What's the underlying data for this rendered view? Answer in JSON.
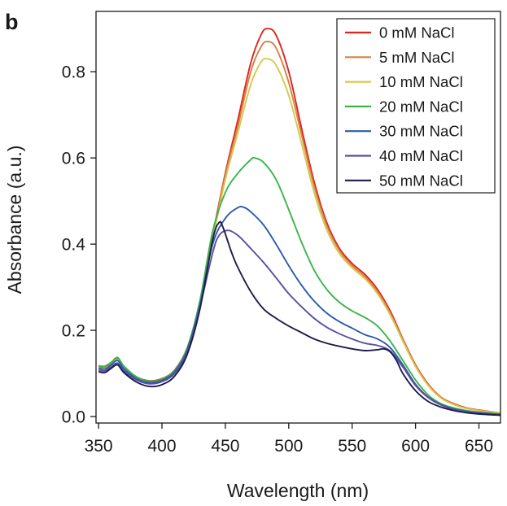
{
  "panel_label": "b",
  "chart_data": {
    "type": "line",
    "xlabel": "Wavelength (nm)",
    "ylabel": "Absorbance (a.u.)",
    "xlim": [
      348,
      667
    ],
    "ylim": [
      -0.015,
      0.94
    ],
    "xticks": [
      350,
      400,
      450,
      500,
      550,
      600,
      650
    ],
    "xtick_labels": [
      "350",
      "400",
      "450",
      "500",
      "550",
      "600",
      "650"
    ],
    "yticks": [
      0.0,
      0.2,
      0.4,
      0.6,
      0.8
    ],
    "ytick_labels": [
      "0.0",
      "0.2",
      "0.4",
      "0.6",
      "0.8"
    ],
    "grid": false,
    "legend_position": "top-right",
    "series": [
      {
        "name": "0 mM NaCl",
        "color": "#e2231a",
        "points": [
          [
            350,
            0.115
          ],
          [
            355,
            0.113
          ],
          [
            360,
            0.122
          ],
          [
            365,
            0.135
          ],
          [
            370,
            0.115
          ],
          [
            380,
            0.092
          ],
          [
            390,
            0.083
          ],
          [
            400,
            0.088
          ],
          [
            410,
            0.108
          ],
          [
            420,
            0.16
          ],
          [
            430,
            0.265
          ],
          [
            440,
            0.42
          ],
          [
            450,
            0.565
          ],
          [
            460,
            0.69
          ],
          [
            470,
            0.82
          ],
          [
            478,
            0.885
          ],
          [
            483,
            0.9
          ],
          [
            490,
            0.885
          ],
          [
            500,
            0.8
          ],
          [
            510,
            0.67
          ],
          [
            520,
            0.545
          ],
          [
            530,
            0.45
          ],
          [
            540,
            0.39
          ],
          [
            550,
            0.355
          ],
          [
            560,
            0.33
          ],
          [
            570,
            0.295
          ],
          [
            580,
            0.245
          ],
          [
            590,
            0.18
          ],
          [
            600,
            0.12
          ],
          [
            610,
            0.075
          ],
          [
            620,
            0.045
          ],
          [
            630,
            0.03
          ],
          [
            640,
            0.02
          ],
          [
            650,
            0.015
          ],
          [
            667,
            0.008
          ]
        ]
      },
      {
        "name": "5 mM NaCl",
        "color": "#d3834a",
        "points": [
          [
            350,
            0.114
          ],
          [
            355,
            0.112
          ],
          [
            360,
            0.121
          ],
          [
            365,
            0.133
          ],
          [
            370,
            0.114
          ],
          [
            380,
            0.091
          ],
          [
            390,
            0.082
          ],
          [
            400,
            0.087
          ],
          [
            410,
            0.107
          ],
          [
            420,
            0.158
          ],
          [
            430,
            0.262
          ],
          [
            440,
            0.415
          ],
          [
            450,
            0.56
          ],
          [
            460,
            0.675
          ],
          [
            470,
            0.8
          ],
          [
            478,
            0.857
          ],
          [
            483,
            0.87
          ],
          [
            490,
            0.855
          ],
          [
            500,
            0.775
          ],
          [
            510,
            0.655
          ],
          [
            520,
            0.535
          ],
          [
            530,
            0.443
          ],
          [
            540,
            0.385
          ],
          [
            550,
            0.35
          ],
          [
            560,
            0.325
          ],
          [
            570,
            0.29
          ],
          [
            580,
            0.24
          ],
          [
            590,
            0.178
          ],
          [
            600,
            0.118
          ],
          [
            610,
            0.073
          ],
          [
            620,
            0.044
          ],
          [
            630,
            0.029
          ],
          [
            640,
            0.019
          ],
          [
            650,
            0.014
          ],
          [
            667,
            0.008
          ]
        ]
      },
      {
        "name": "10 mM NaCl",
        "color": "#d6c94a",
        "points": [
          [
            350,
            0.113
          ],
          [
            355,
            0.111
          ],
          [
            360,
            0.12
          ],
          [
            365,
            0.132
          ],
          [
            370,
            0.113
          ],
          [
            380,
            0.09
          ],
          [
            390,
            0.081
          ],
          [
            400,
            0.086
          ],
          [
            410,
            0.106
          ],
          [
            420,
            0.156
          ],
          [
            430,
            0.26
          ],
          [
            440,
            0.41
          ],
          [
            450,
            0.55
          ],
          [
            460,
            0.66
          ],
          [
            470,
            0.77
          ],
          [
            478,
            0.822
          ],
          [
            483,
            0.83
          ],
          [
            490,
            0.815
          ],
          [
            500,
            0.745
          ],
          [
            510,
            0.635
          ],
          [
            520,
            0.52
          ],
          [
            530,
            0.433
          ],
          [
            540,
            0.378
          ],
          [
            550,
            0.345
          ],
          [
            560,
            0.32
          ],
          [
            570,
            0.285
          ],
          [
            580,
            0.236
          ],
          [
            590,
            0.175
          ],
          [
            600,
            0.116
          ],
          [
            610,
            0.072
          ],
          [
            620,
            0.043
          ],
          [
            630,
            0.028
          ],
          [
            640,
            0.019
          ],
          [
            650,
            0.014
          ],
          [
            667,
            0.008
          ]
        ]
      },
      {
        "name": "20 mM NaCl",
        "color": "#3bb54a",
        "points": [
          [
            350,
            0.118
          ],
          [
            355,
            0.117
          ],
          [
            360,
            0.126
          ],
          [
            365,
            0.137
          ],
          [
            370,
            0.117
          ],
          [
            380,
            0.092
          ],
          [
            390,
            0.082
          ],
          [
            400,
            0.087
          ],
          [
            410,
            0.107
          ],
          [
            420,
            0.16
          ],
          [
            430,
            0.27
          ],
          [
            440,
            0.43
          ],
          [
            450,
            0.52
          ],
          [
            460,
            0.565
          ],
          [
            470,
            0.596
          ],
          [
            473,
            0.6
          ],
          [
            480,
            0.59
          ],
          [
            490,
            0.55
          ],
          [
            500,
            0.48
          ],
          [
            510,
            0.405
          ],
          [
            520,
            0.34
          ],
          [
            530,
            0.295
          ],
          [
            540,
            0.265
          ],
          [
            550,
            0.245
          ],
          [
            560,
            0.23
          ],
          [
            570,
            0.21
          ],
          [
            580,
            0.175
          ],
          [
            590,
            0.13
          ],
          [
            600,
            0.085
          ],
          [
            610,
            0.05
          ],
          [
            620,
            0.03
          ],
          [
            630,
            0.02
          ],
          [
            640,
            0.014
          ],
          [
            650,
            0.01
          ],
          [
            667,
            0.006
          ]
        ]
      },
      {
        "name": "30 mM NaCl",
        "color": "#2a5cab",
        "points": [
          [
            350,
            0.112
          ],
          [
            355,
            0.11
          ],
          [
            360,
            0.12
          ],
          [
            365,
            0.13
          ],
          [
            370,
            0.111
          ],
          [
            380,
            0.088
          ],
          [
            390,
            0.079
          ],
          [
            400,
            0.084
          ],
          [
            410,
            0.104
          ],
          [
            420,
            0.155
          ],
          [
            430,
            0.26
          ],
          [
            440,
            0.4
          ],
          [
            450,
            0.46
          ],
          [
            460,
            0.485
          ],
          [
            465,
            0.485
          ],
          [
            470,
            0.475
          ],
          [
            480,
            0.445
          ],
          [
            490,
            0.4
          ],
          [
            500,
            0.35
          ],
          [
            510,
            0.305
          ],
          [
            520,
            0.268
          ],
          [
            530,
            0.24
          ],
          [
            540,
            0.22
          ],
          [
            550,
            0.205
          ],
          [
            560,
            0.19
          ],
          [
            570,
            0.18
          ],
          [
            580,
            0.16
          ],
          [
            590,
            0.12
          ],
          [
            600,
            0.075
          ],
          [
            610,
            0.045
          ],
          [
            620,
            0.028
          ],
          [
            630,
            0.018
          ],
          [
            640,
            0.012
          ],
          [
            650,
            0.009
          ],
          [
            667,
            0.005
          ]
        ]
      },
      {
        "name": "40 mM NaCl",
        "color": "#5a4fa0",
        "points": [
          [
            350,
            0.108
          ],
          [
            355,
            0.106
          ],
          [
            360,
            0.115
          ],
          [
            365,
            0.124
          ],
          [
            370,
            0.106
          ],
          [
            380,
            0.085
          ],
          [
            390,
            0.076
          ],
          [
            400,
            0.081
          ],
          [
            410,
            0.1
          ],
          [
            420,
            0.15
          ],
          [
            430,
            0.255
          ],
          [
            440,
            0.38
          ],
          [
            445,
            0.42
          ],
          [
            452,
            0.432
          ],
          [
            460,
            0.42
          ],
          [
            470,
            0.39
          ],
          [
            480,
            0.358
          ],
          [
            490,
            0.322
          ],
          [
            500,
            0.285
          ],
          [
            510,
            0.255
          ],
          [
            520,
            0.228
          ],
          [
            530,
            0.207
          ],
          [
            540,
            0.192
          ],
          [
            550,
            0.18
          ],
          [
            560,
            0.17
          ],
          [
            570,
            0.165
          ],
          [
            580,
            0.152
          ],
          [
            590,
            0.115
          ],
          [
            600,
            0.072
          ],
          [
            610,
            0.044
          ],
          [
            620,
            0.027
          ],
          [
            630,
            0.017
          ],
          [
            640,
            0.011
          ],
          [
            650,
            0.008
          ],
          [
            667,
            0.004
          ]
        ]
      },
      {
        "name": "50 mM NaCl",
        "color": "#1e1b4b",
        "points": [
          [
            350,
            0.104
          ],
          [
            355,
            0.102
          ],
          [
            360,
            0.112
          ],
          [
            365,
            0.12
          ],
          [
            370,
            0.102
          ],
          [
            380,
            0.08
          ],
          [
            390,
            0.07
          ],
          [
            400,
            0.074
          ],
          [
            410,
            0.094
          ],
          [
            420,
            0.145
          ],
          [
            430,
            0.25
          ],
          [
            440,
            0.41
          ],
          [
            445,
            0.45
          ],
          [
            448,
            0.44
          ],
          [
            455,
            0.38
          ],
          [
            460,
            0.345
          ],
          [
            470,
            0.29
          ],
          [
            480,
            0.25
          ],
          [
            490,
            0.228
          ],
          [
            500,
            0.21
          ],
          [
            510,
            0.195
          ],
          [
            520,
            0.18
          ],
          [
            530,
            0.17
          ],
          [
            540,
            0.163
          ],
          [
            550,
            0.157
          ],
          [
            560,
            0.153
          ],
          [
            570,
            0.155
          ],
          [
            575,
            0.157
          ],
          [
            580,
            0.15
          ],
          [
            585,
            0.13
          ],
          [
            590,
            0.1
          ],
          [
            600,
            0.06
          ],
          [
            610,
            0.035
          ],
          [
            620,
            0.022
          ],
          [
            630,
            0.014
          ],
          [
            640,
            0.009
          ],
          [
            650,
            0.006
          ],
          [
            667,
            0.003
          ]
        ]
      }
    ]
  }
}
